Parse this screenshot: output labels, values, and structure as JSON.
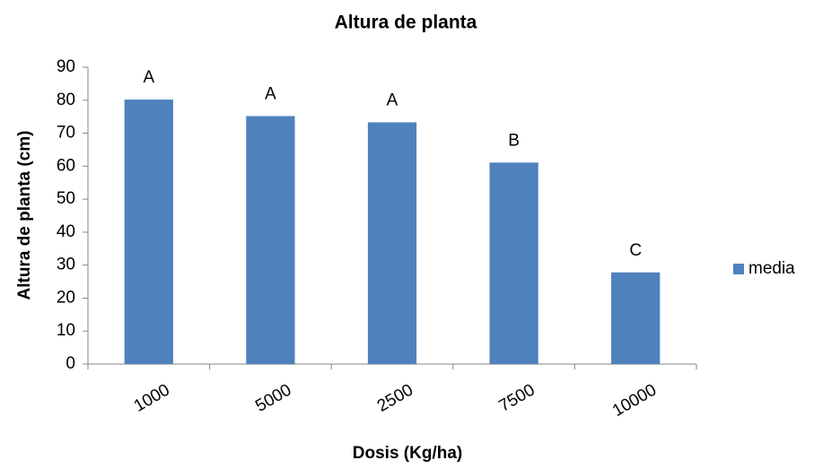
{
  "chart_data": {
    "type": "bar",
    "title": "Altura de planta",
    "x_label": "Dosis (Kg/ha)",
    "y_label": "Altura de planta (cm)",
    "categories": [
      "1000",
      "5000",
      "2500",
      "7500",
      "10000"
    ],
    "series": [
      {
        "name": "media",
        "color": "#4f81bd",
        "values": [
          80.2,
          75.2,
          73.3,
          61.1,
          27.8
        ]
      }
    ],
    "annotations": [
      "A",
      "A",
      "A",
      "B",
      "C"
    ],
    "ylim": [
      0,
      90
    ],
    "yticks": [
      0,
      10,
      20,
      30,
      40,
      50,
      60,
      70,
      80,
      90
    ],
    "grid": false,
    "legend": "right"
  }
}
